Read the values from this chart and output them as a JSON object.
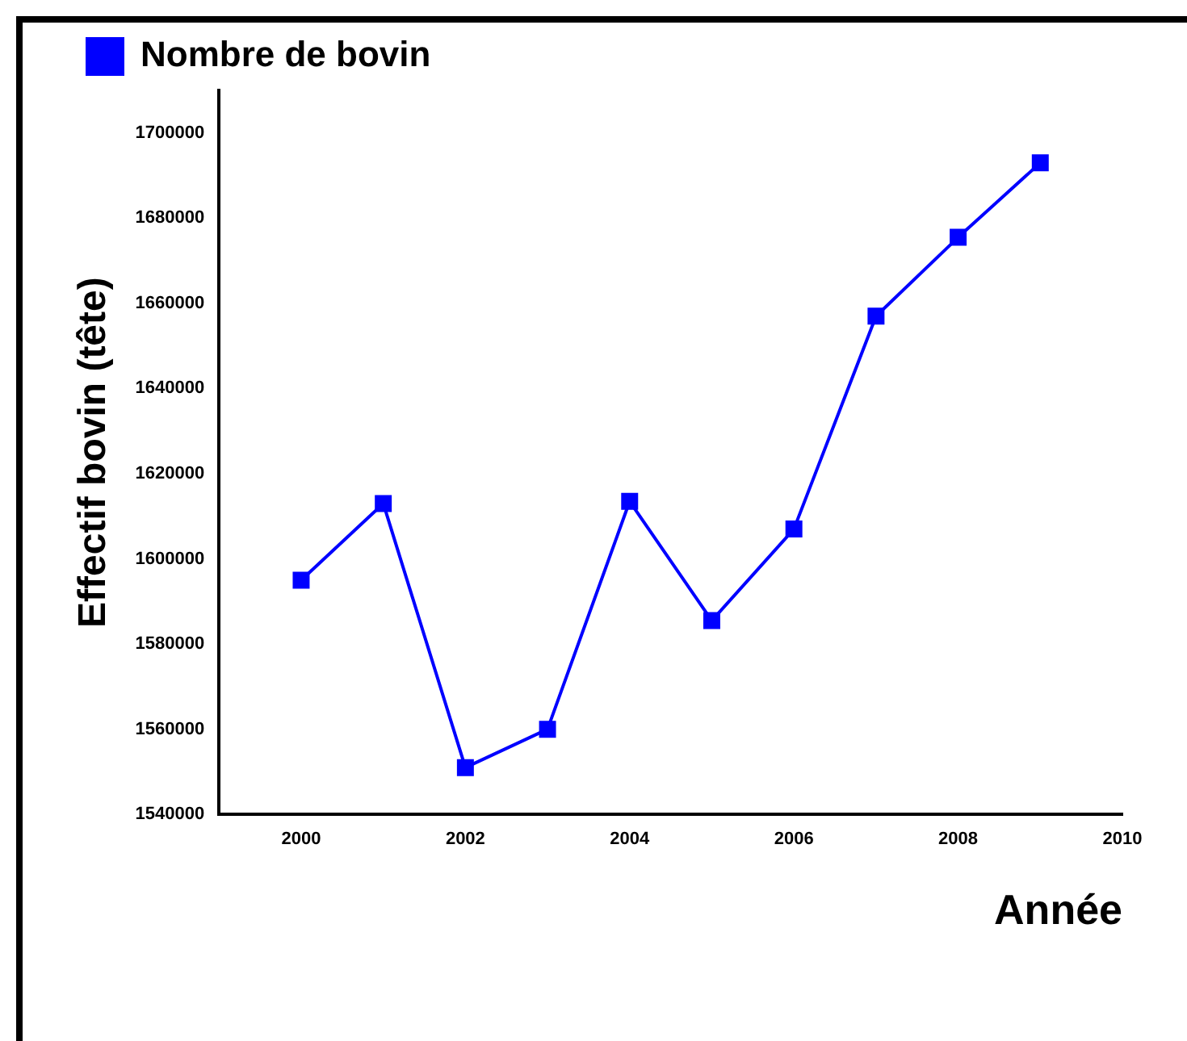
{
  "chart_data": {
    "type": "line",
    "xlabel": "Année",
    "ylabel": "Effectif bovin (tête)",
    "x": [
      2000,
      2001,
      2002,
      2003,
      2004,
      2005,
      2006,
      2007,
      2008,
      2009
    ],
    "series": [
      {
        "name": "Nombre de bovin",
        "color": "#0000ff",
        "values": [
          1595000,
          1613000,
          1551000,
          1560000,
          1613500,
          1585500,
          1607000,
          1657000,
          1675500,
          1693000
        ]
      }
    ],
    "xlim": [
      1999,
      2010
    ],
    "xticks": [
      2000,
      2002,
      2004,
      2006,
      2008,
      2010
    ],
    "ylim": [
      1540000,
      1710000
    ],
    "yticks": [
      1540000,
      1560000,
      1580000,
      1600000,
      1620000,
      1640000,
      1660000,
      1680000,
      1700000
    ],
    "grid": false,
    "legend": "top left",
    "marker": "square",
    "line_style": "solid"
  }
}
